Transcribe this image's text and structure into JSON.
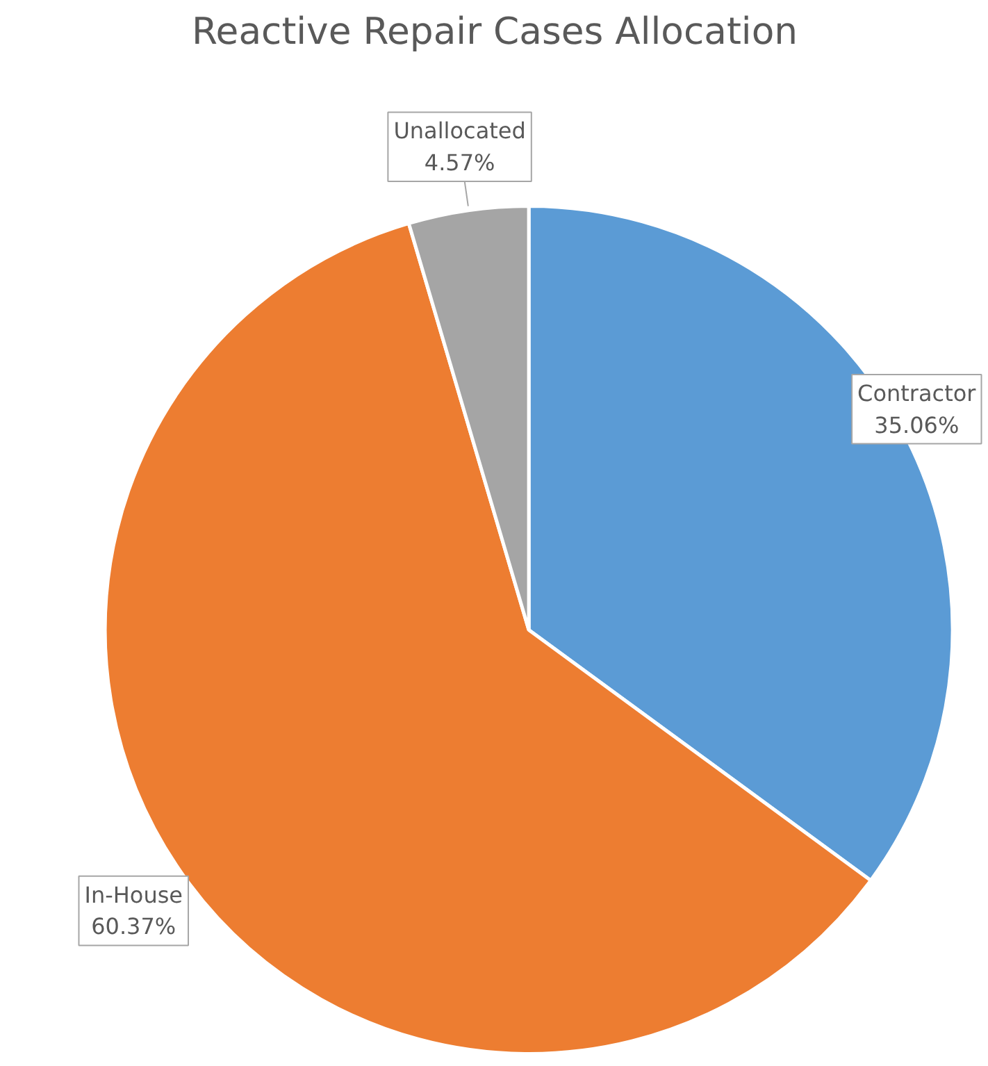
{
  "chart_data": {
    "type": "pie",
    "title": "Reactive Repair Cases Allocation",
    "categories": [
      "Contractor",
      "In-House",
      "Unallocated"
    ],
    "values": [
      35.06,
      60.37,
      4.57
    ],
    "colors": [
      "#5b9bd5",
      "#ed7d31",
      "#a5a5a5"
    ],
    "value_labels": [
      "35.06%",
      "60.37%",
      "4.57%"
    ]
  }
}
